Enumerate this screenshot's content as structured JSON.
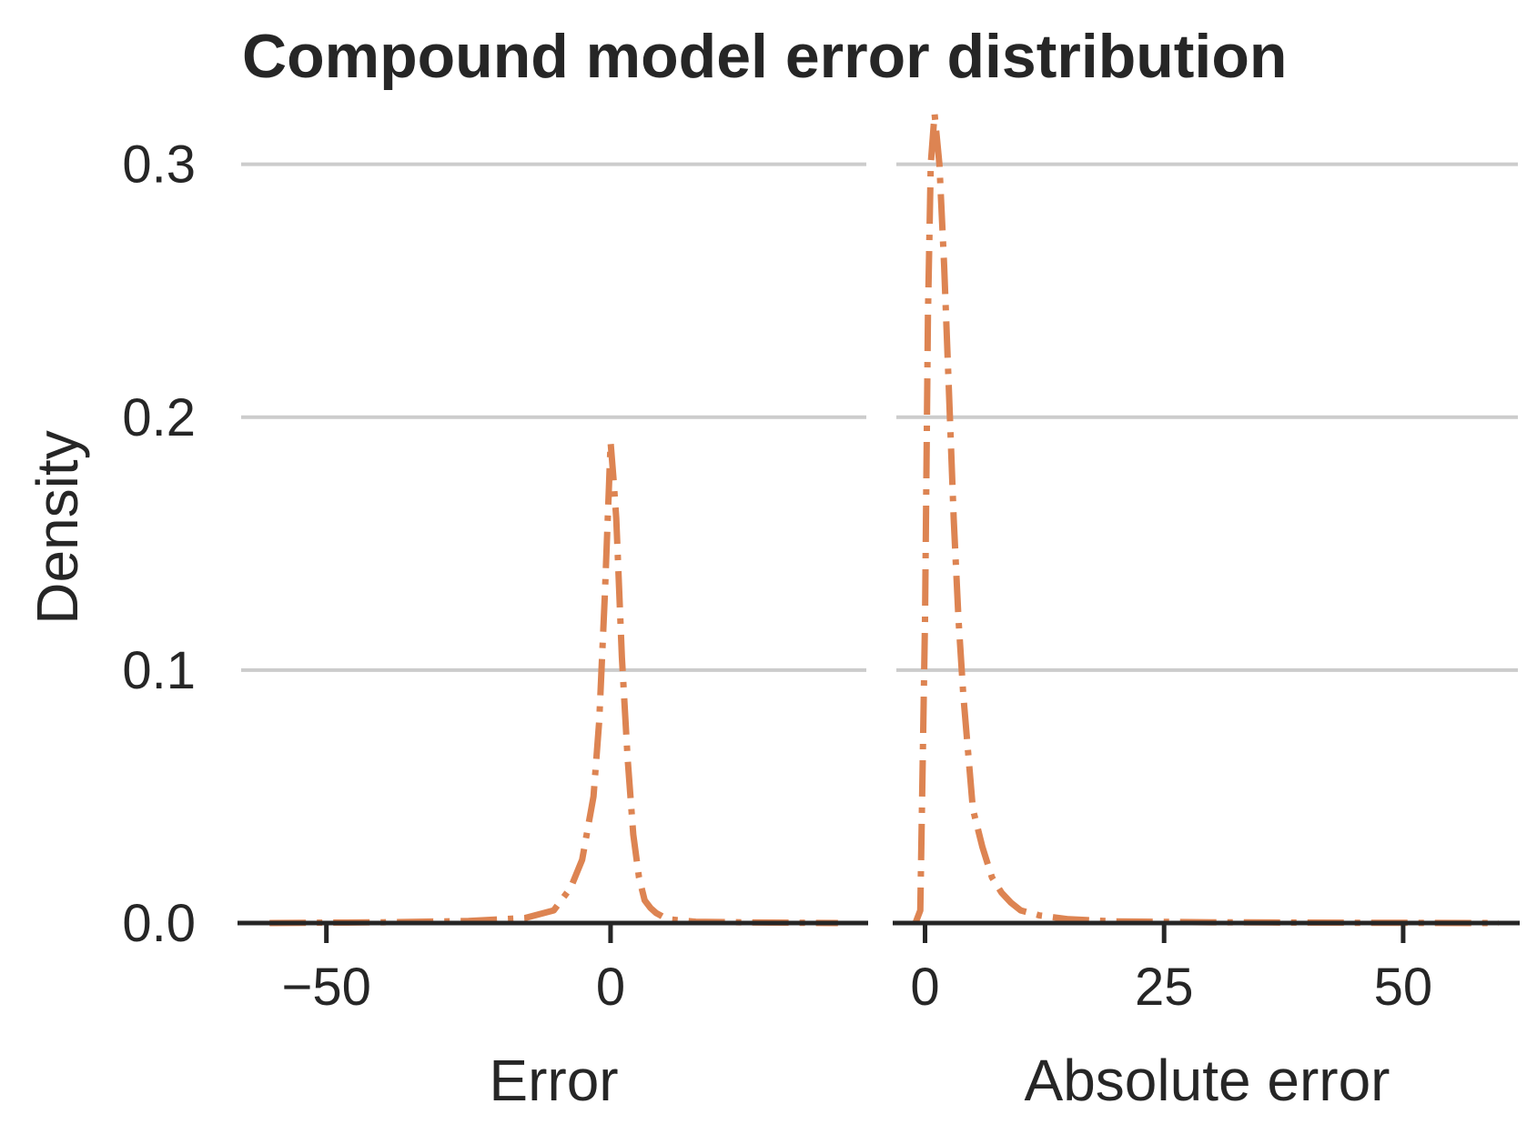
{
  "chart_data": {
    "type": "line",
    "title": "Compound model error distribution",
    "ylabel": "Density",
    "ylim": [
      0,
      0.32
    ],
    "yticks": [
      0.0,
      0.1,
      0.2,
      0.3
    ],
    "ytick_labels": [
      "0.0",
      "0.1",
      "0.2",
      "0.3"
    ],
    "grid": "horizontal",
    "line_color": "#DD8452",
    "line_style": "dash-dot",
    "panels": [
      {
        "xlabel": "Error",
        "xlim": [
          -65,
          45
        ],
        "xticks": [
          -50,
          0
        ],
        "xtick_labels": [
          "−50",
          "0"
        ],
        "x": [
          -60,
          -40,
          -25,
          -15,
          -10,
          -7,
          -5,
          -3,
          -2,
          -1,
          0,
          0.5,
          1,
          2,
          3,
          4,
          5,
          6,
          7,
          8,
          10,
          15,
          25,
          40
        ],
        "y": [
          0.0,
          0.0003,
          0.0008,
          0.002,
          0.005,
          0.014,
          0.025,
          0.05,
          0.08,
          0.13,
          0.19,
          0.176,
          0.16,
          0.105,
          0.065,
          0.035,
          0.018,
          0.009,
          0.006,
          0.004,
          0.0015,
          0.0005,
          0.0002,
          0.0
        ]
      },
      {
        "xlabel": "Absolute error",
        "xlim": [
          -3,
          62
        ],
        "xticks": [
          0,
          25,
          50
        ],
        "xtick_labels": [
          "0",
          "25",
          "50"
        ],
        "x": [
          -1,
          -0.5,
          0,
          0.3,
          0.6,
          1,
          1.5,
          2,
          2.5,
          3,
          3.5,
          4,
          5,
          6,
          7,
          8,
          9,
          10,
          12,
          15,
          20,
          30,
          45,
          60
        ],
        "y": [
          0.0,
          0.005,
          0.12,
          0.24,
          0.3,
          0.32,
          0.3,
          0.26,
          0.21,
          0.16,
          0.12,
          0.09,
          0.045,
          0.03,
          0.018,
          0.012,
          0.008,
          0.005,
          0.003,
          0.0015,
          0.0006,
          0.0003,
          0.0001,
          0.0
        ]
      }
    ]
  }
}
